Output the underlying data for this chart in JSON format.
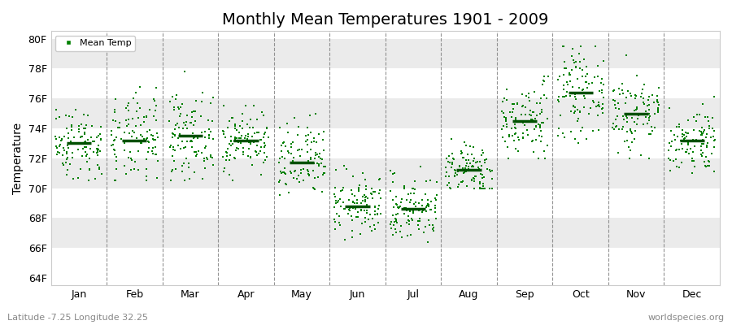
{
  "title": "Monthly Mean Temperatures 1901 - 2009",
  "ylabel": "Temperature",
  "xlabel_bottom": "Latitude -7.25 Longitude 32.25",
  "xlabel_right": "worldspecies.org",
  "legend_label": "Mean Temp",
  "yticks": [
    64,
    66,
    68,
    70,
    72,
    74,
    76,
    78,
    80
  ],
  "ylim": [
    63.5,
    80.5
  ],
  "months": [
    "Jan",
    "Feb",
    "Mar",
    "Apr",
    "May",
    "Jun",
    "Jul",
    "Aug",
    "Sep",
    "Oct",
    "Nov",
    "Dec"
  ],
  "monthly_means_F": [
    73.0,
    73.2,
    73.5,
    73.2,
    71.7,
    68.8,
    68.6,
    71.2,
    74.5,
    76.4,
    75.0,
    73.2
  ],
  "monthly_std_F": [
    1.2,
    1.5,
    1.4,
    1.0,
    1.3,
    1.0,
    1.1,
    0.9,
    1.3,
    1.4,
    1.4,
    1.1
  ],
  "monthly_min_ext": [
    70.5,
    70.5,
    70.5,
    70.5,
    68.5,
    66.5,
    65.0,
    70.0,
    72.0,
    73.0,
    72.0,
    71.0
  ],
  "monthly_max_ext": [
    76.0,
    78.0,
    79.5,
    75.5,
    75.5,
    71.5,
    72.5,
    73.5,
    77.5,
    79.5,
    79.5,
    77.5
  ],
  "n_years": 109,
  "dot_color": "#008000",
  "mean_line_color": "#005000",
  "bg_color_white": "#ffffff",
  "bg_color_gray": "#ebebeb",
  "figure_bg": "#ffffff",
  "title_fontsize": 14,
  "axis_label_fontsize": 10,
  "tick_fontsize": 9,
  "dpi": 100,
  "fig_width": 9.0,
  "fig_height": 4.0,
  "seed": 42
}
